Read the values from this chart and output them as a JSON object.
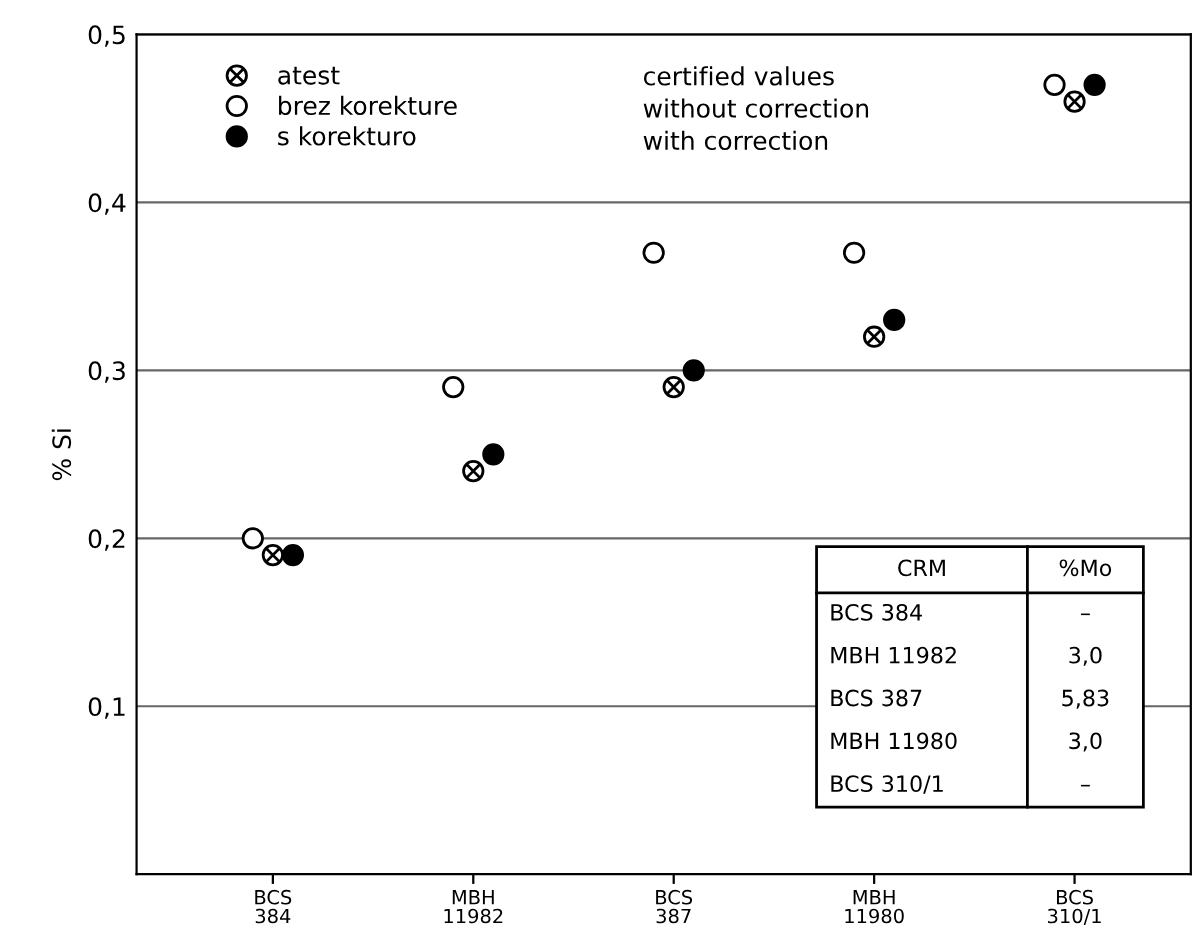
{
  "chart_data": {
    "type": "scatter",
    "ylabel": "% Si",
    "categories": [
      "BCS\n384",
      "MBH\n11982",
      "BCS\n387",
      "MBH\n11980",
      "BCS\n310/1"
    ],
    "series": [
      {
        "name": "atest",
        "color": "#000000",
        "marker": "cross",
        "values": [
          0.19,
          0.24,
          0.29,
          0.32,
          0.46
        ]
      },
      {
        "name": "brez korekture",
        "color": "#ffffff",
        "marker": "circle",
        "values": [
          0.2,
          0.29,
          0.37,
          0.37,
          0.47
        ]
      },
      {
        "name": "s korekturo",
        "color": "#000000",
        "marker": "circle",
        "values": [
          0.19,
          0.25,
          0.3,
          0.33,
          0.47
        ]
      }
    ],
    "ylim": [
      0,
      0.5
    ],
    "yticks": [
      {
        "value": 0.1,
        "label": "0,1"
      },
      {
        "value": 0.2,
        "label": "0,2"
      },
      {
        "value": 0.3,
        "label": "0,3"
      },
      {
        "value": 0.4,
        "label": "0,4"
      },
      {
        "value": 0.5,
        "label": "0,5"
      }
    ],
    "grid": "y",
    "legend": "top left",
    "annotations": [
      "certified values",
      "without correction",
      "with correction",
      "CRM",
      "%Mo",
      "BCS 384",
      "–",
      "MBH 11982",
      "3,0",
      "BCS 387",
      "5,83",
      "MBH 11980",
      "3,0",
      "BCS 310/1",
      "–"
    ]
  }
}
